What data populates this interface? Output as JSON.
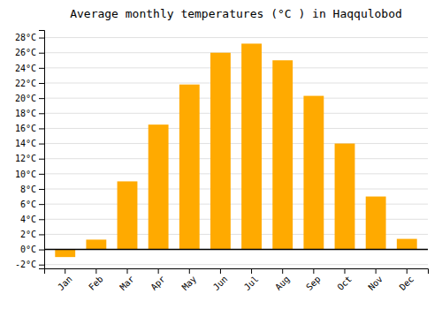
{
  "chart_data": {
    "type": "bar",
    "title": "Average monthly temperatures (°C ) in Haqqulobod",
    "categories": [
      "Jan",
      "Feb",
      "Mar",
      "Apr",
      "May",
      "Jun",
      "Jul",
      "Aug",
      "Sep",
      "Oct",
      "Nov",
      "Dec"
    ],
    "values": [
      -1.0,
      1.3,
      9.0,
      16.5,
      21.8,
      26.0,
      27.2,
      25.0,
      20.3,
      14.0,
      7.0,
      1.4
    ],
    "color": "#FFAA00",
    "ylim": [
      -2.5,
      29
    ],
    "yticks": [
      {
        "value": -2,
        "label": "-2°C"
      },
      {
        "value": 0,
        "label": "0°C"
      },
      {
        "value": 2,
        "label": "2°C"
      },
      {
        "value": 4,
        "label": "4°C"
      },
      {
        "value": 6,
        "label": "6°C"
      },
      {
        "value": 8,
        "label": "8°C"
      },
      {
        "value": 10,
        "label": "10°C"
      },
      {
        "value": 12,
        "label": "12°C"
      },
      {
        "value": 14,
        "label": "14°C"
      },
      {
        "value": 16,
        "label": "16°C"
      },
      {
        "value": 18,
        "label": "18°C"
      },
      {
        "value": 20,
        "label": "20°C"
      },
      {
        "value": 22,
        "label": "22°C"
      },
      {
        "value": 24,
        "label": "24°C"
      },
      {
        "value": 26,
        "label": "26°C"
      },
      {
        "value": 28,
        "label": "28°C"
      }
    ],
    "grid": true
  }
}
